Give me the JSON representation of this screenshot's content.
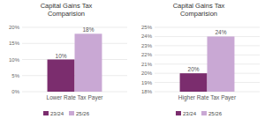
{
  "chart_data": [
    {
      "type": "bar",
      "title": "Capital Gains Tax\nComparision",
      "categories": [
        "Lower Rate Tax Payer"
      ],
      "series": [
        {
          "name": "23/24",
          "color": "#7b2d6e",
          "values": [
            10
          ],
          "value_labels": [
            "10%"
          ]
        },
        {
          "name": "25/26",
          "color": "#c9a8d4",
          "values": [
            18
          ],
          "value_labels": [
            "18%"
          ]
        }
      ],
      "ylim": [
        0,
        20
      ],
      "yticks": [
        {
          "value": 0,
          "label": "0%"
        },
        {
          "value": 5,
          "label": "5%"
        },
        {
          "value": 10,
          "label": "10%"
        },
        {
          "value": 15,
          "label": "15%"
        },
        {
          "value": 20,
          "label": "20%"
        }
      ],
      "grid": true,
      "data_labels": true,
      "legend": "bottom"
    },
    {
      "type": "bar",
      "title": "Capital Gains Tax\nComparision",
      "categories": [
        "Higher Rate Tax Payer"
      ],
      "series": [
        {
          "name": "23/24",
          "color": "#7b2d6e",
          "values": [
            20
          ],
          "value_labels": [
            "20%"
          ]
        },
        {
          "name": "25/26",
          "color": "#c9a8d4",
          "values": [
            24
          ],
          "value_labels": [
            "24%"
          ]
        }
      ],
      "ylim": [
        18,
        25
      ],
      "yticks": [
        {
          "value": 18,
          "label": "18%"
        },
        {
          "value": 19,
          "label": "19%"
        },
        {
          "value": 20,
          "label": "20%"
        },
        {
          "value": 21,
          "label": "21%"
        },
        {
          "value": 22,
          "label": "22%"
        },
        {
          "value": 23,
          "label": "23%"
        },
        {
          "value": 24,
          "label": "24%"
        },
        {
          "value": 25,
          "label": "25%"
        }
      ],
      "grid": true,
      "data_labels": true,
      "legend": "bottom"
    }
  ]
}
